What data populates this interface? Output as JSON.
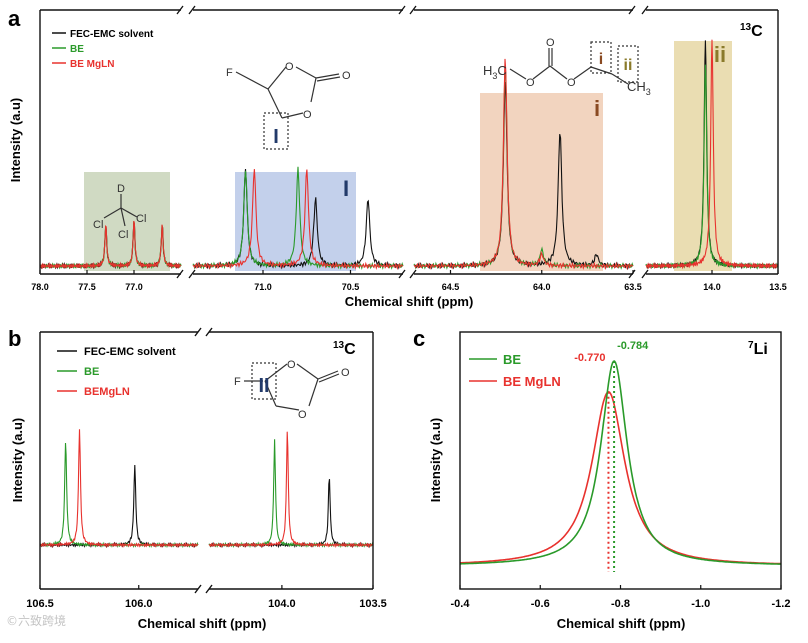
{
  "colors": {
    "black": "#111111",
    "green": "#2a9a2a",
    "red": "#e8322e",
    "sage": "#c8d4b8",
    "blue": "#b8c8e8",
    "peach": "#f0cdb4",
    "khaki": "#e6d7a4",
    "navy": "#223a6a",
    "brown": "#8a4a22",
    "olive": "#8a7a2a"
  },
  "watermark": "©六致跨境",
  "legend_entries": [
    "FEC-EMC solvent",
    "BE",
    "BE MgLN",
    "BE",
    "BEMgLN",
    "BE MgLN"
  ],
  "annotations": {
    "nucleus_13c": "13C",
    "nucleus_7li": "7Li",
    "roman_1": "I",
    "roman_2": "II",
    "site_i": "i",
    "site_ii": "ii"
  },
  "molecules": {
    "fec_f": "F",
    "fec_o": "O",
    "dcm_d": "D",
    "dcm_cl": "Cl",
    "emc_h3c": "H3C",
    "emc_ch3": "CH3"
  },
  "chart_data": [
    {
      "panel": "a",
      "type": "line",
      "nucleus": "13C",
      "xlabel": "Chemical shift (ppm)",
      "ylabel": "Intensity (a.u)",
      "x_segments": [
        [
          78.0,
          76.5
        ],
        [
          71.4,
          70.2
        ],
        [
          64.7,
          63.5
        ],
        [
          14.5,
          13.5
        ]
      ],
      "x_ticks": [
        [
          78.0,
          77.5,
          77.0
        ],
        [
          71.0,
          70.5
        ],
        [
          64.5,
          64.0,
          63.5
        ],
        [
          14.0,
          13.5
        ]
      ],
      "x_tick_labels": [
        [
          "78.0",
          "77.5",
          "77.0"
        ],
        [
          "71.0",
          "70.5"
        ],
        [
          "64.5",
          "64.0",
          "63.5"
        ],
        [
          "14.0",
          "13.5"
        ]
      ],
      "series": [
        {
          "name": "FEC-EMC solvent",
          "peaks": [
            [
              77.3,
              0.18
            ],
            [
              77.0,
              0.2
            ],
            [
              76.7,
              0.18
            ],
            [
              71.1,
              0.43
            ],
            [
              70.7,
              0.3
            ],
            [
              70.4,
              0.3
            ],
            [
              64.2,
              0.82
            ],
            [
              63.9,
              0.6
            ],
            [
              63.7,
              0.05
            ],
            [
              14.05,
              1.0
            ]
          ]
        },
        {
          "name": "BE",
          "peaks": [
            [
              77.3,
              0.18
            ],
            [
              77.0,
              0.2
            ],
            [
              76.7,
              0.18
            ],
            [
              71.1,
              0.43
            ],
            [
              70.8,
              0.43
            ],
            [
              64.2,
              0.9
            ],
            [
              64.0,
              0.07
            ],
            [
              14.05,
              0.9
            ]
          ]
        },
        {
          "name": "BE MgLN",
          "peaks": [
            [
              77.3,
              0.18
            ],
            [
              77.0,
              0.2
            ],
            [
              76.7,
              0.18
            ],
            [
              71.05,
              0.43
            ],
            [
              70.75,
              0.43
            ],
            [
              64.2,
              0.93
            ],
            [
              64.0,
              0.05
            ],
            [
              14.0,
              1.0
            ]
          ]
        }
      ]
    },
    {
      "panel": "b",
      "type": "line",
      "nucleus": "13C",
      "xlabel": "Chemical shift (ppm)",
      "ylabel": "Intensity (a.u)",
      "x_segments": [
        [
          106.5,
          105.7
        ],
        [
          104.4,
          103.5
        ]
      ],
      "x_ticks": [
        [
          106.5,
          106.0
        ],
        [
          104.0,
          103.5
        ]
      ],
      "x_tick_labels": [
        [
          "106.5",
          "106.0"
        ],
        [
          "104.0",
          "103.5"
        ]
      ],
      "series": [
        {
          "name": "FEC-EMC solvent",
          "peaks": [
            [
              106.02,
              0.55
            ],
            [
              103.74,
              0.48
            ]
          ]
        },
        {
          "name": "BE",
          "peaks": [
            [
              106.37,
              0.72
            ],
            [
              104.04,
              0.72
            ]
          ]
        },
        {
          "name": "BEMgLN",
          "peaks": [
            [
              106.3,
              0.8
            ],
            [
              103.97,
              0.8
            ]
          ]
        }
      ]
    },
    {
      "panel": "c",
      "type": "line",
      "nucleus": "7Li",
      "xlabel": "Chemical shift (ppm)",
      "ylabel": "Intensity (a.u)",
      "xlim": [
        -0.4,
        -1.2
      ],
      "x_ticks": [
        -0.4,
        -0.6,
        -0.8,
        -1.0,
        -1.2
      ],
      "x_tick_labels": [
        "-0.4",
        "-0.6",
        "-0.8",
        "-1.0",
        "-1.2"
      ],
      "series": [
        {
          "name": "BE",
          "center": -0.784,
          "peak_label": "-0.784"
        },
        {
          "name": "BE MgLN",
          "center": -0.77,
          "peak_label": "-0.770"
        }
      ]
    }
  ],
  "panel_labels": [
    "a",
    "b",
    "c"
  ]
}
